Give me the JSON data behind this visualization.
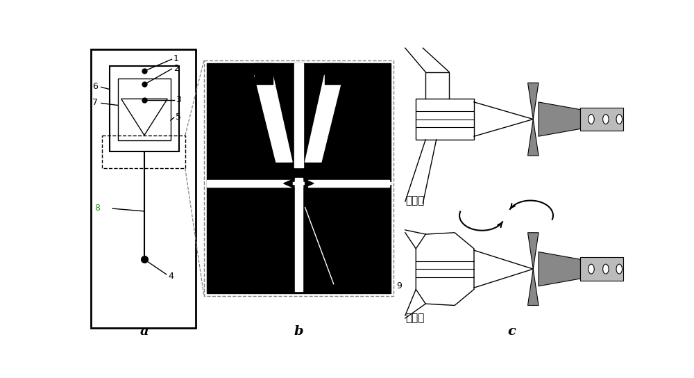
{
  "fig_width": 10.0,
  "fig_height": 5.44,
  "bg_color": "#ffffff",
  "label_a": "a",
  "label_b": "b",
  "label_c": "c",
  "text_pump_off": "泵阀关",
  "text_pump_on": "泵阀开",
  "line_color": "#000000",
  "gray_fill": "#888888",
  "light_gray": "#bbbbbb",
  "green_color": "#228B22"
}
